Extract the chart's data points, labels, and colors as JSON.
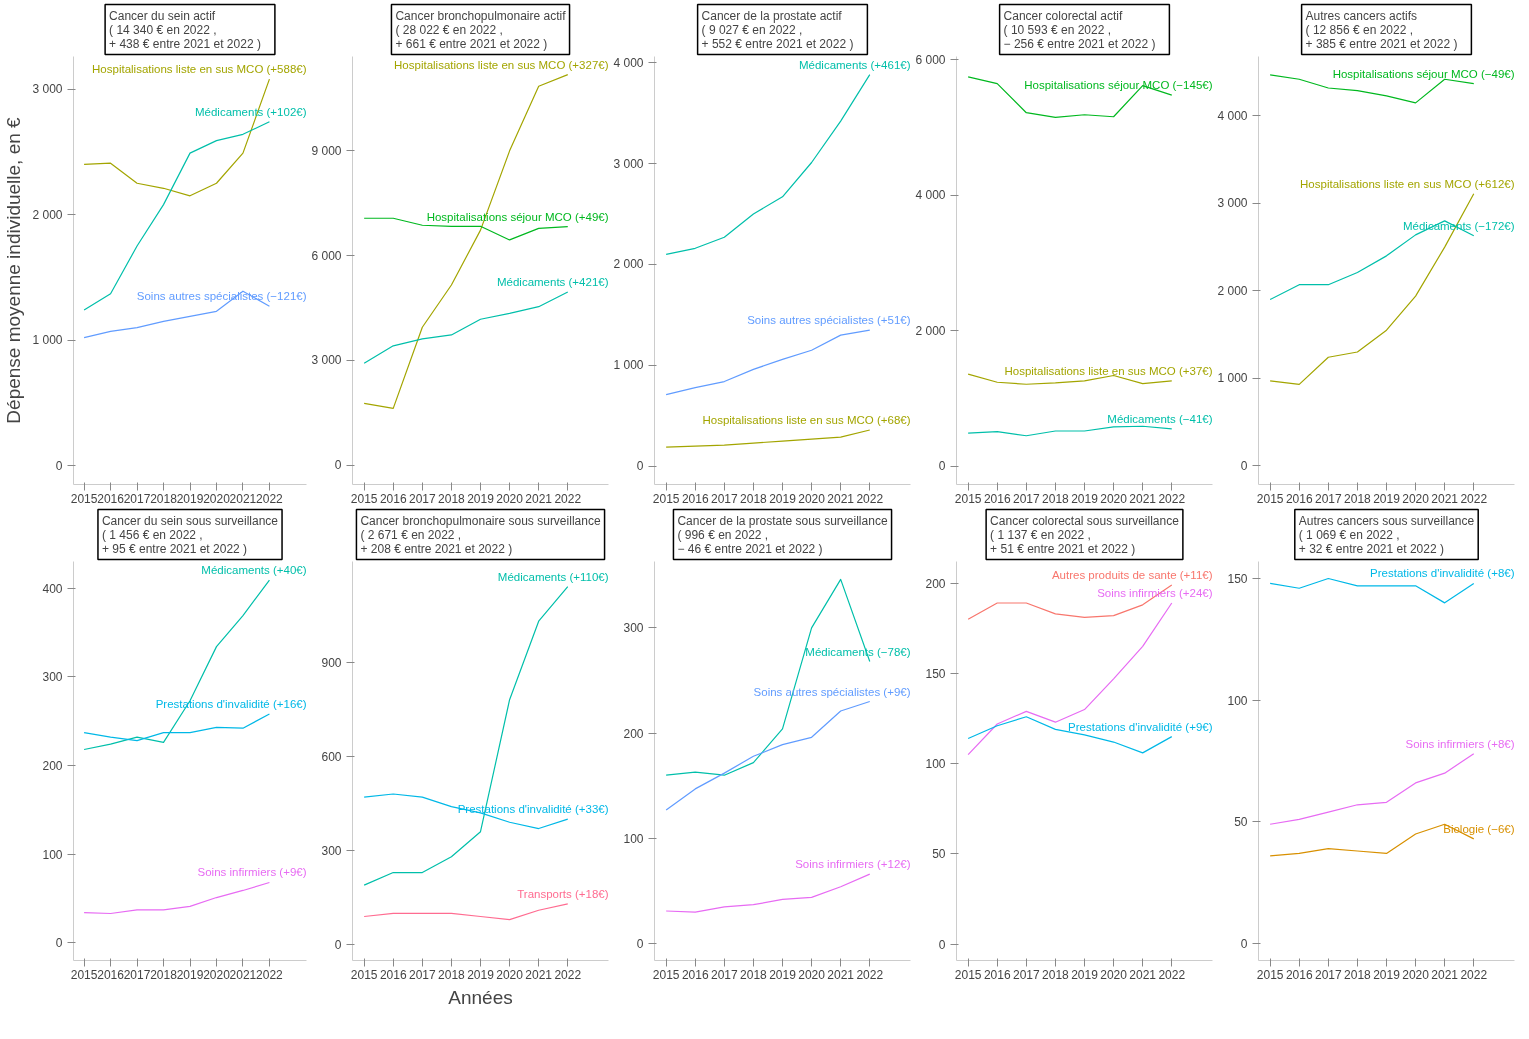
{
  "chart_data": [
    {
      "type": "line",
      "title": "Cancer du sein actif\n( 14 340 € en  2022 ,\n+ 438 € entre  2021  et  2022 )",
      "ylabel": "Dépense moyenne individuelle, en €",
      "x": [
        2015,
        2016,
        2017,
        2018,
        2019,
        2020,
        2021,
        2022
      ],
      "xlim": [
        2014.6,
        2023.4
      ],
      "xticks": [
        2015,
        2016,
        2017,
        2018,
        2019,
        2020,
        2021,
        2022
      ],
      "ylim": [
        -150,
        3260
      ],
      "yticks": [
        0,
        {
          "value": 1000,
          "label": "1 000"
        },
        {
          "value": 2000,
          "label": "2 000"
        },
        {
          "value": 3000,
          "label": "3 000"
        }
      ],
      "series": [
        {
          "name": "Hospitalisations liste en sus MCO (+588€)",
          "color": "#a3a500",
          "values": [
            2400,
            2410,
            2250,
            2210,
            2150,
            2250,
            2490,
            3080
          ]
        },
        {
          "name": "Médicaments (+102€)",
          "color": "#00bfaa",
          "values": [
            1240,
            1370,
            1750,
            2080,
            2490,
            2590,
            2640,
            2740
          ]
        },
        {
          "name": "Soins autres spécialistes (−121€)",
          "color": "#619cff",
          "values": [
            1020,
            1070,
            1100,
            1150,
            1190,
            1230,
            1390,
            1270
          ]
        }
      ]
    },
    {
      "type": "line",
      "title": "Cancer bronchopulmonaire actif\n( 28 022 € en  2022 ,\n+ 661 € entre  2021  et  2022 )",
      "x": [
        2015,
        2016,
        2017,
        2018,
        2019,
        2020,
        2021,
        2022
      ],
      "xlim": [
        2014.6,
        2023.4
      ],
      "xticks": [
        2015,
        2016,
        2017,
        2018,
        2019,
        2020,
        2021,
        2022
      ],
      "ylim": [
        -550,
        11700
      ],
      "yticks": [
        0,
        {
          "value": 3000,
          "label": "3 000"
        },
        {
          "value": 6000,
          "label": "6 000"
        },
        {
          "value": 9000,
          "label": "9 000"
        }
      ],
      "series": [
        {
          "name": "Hospitalisations liste en sus MCO (+327€)",
          "color": "#a3a500",
          "values": [
            1770,
            1630,
            3950,
            5160,
            6730,
            9000,
            10850,
            11180
          ]
        },
        {
          "name": "Hospitalisations séjour MCO (+49€)",
          "color": "#00b81f",
          "values": [
            7070,
            7070,
            6870,
            6840,
            6840,
            6450,
            6780,
            6830
          ]
        },
        {
          "name": "Médicaments (+421€)",
          "color": "#00bfaa",
          "values": [
            2920,
            3420,
            3620,
            3730,
            4180,
            4350,
            4540,
            4960
          ]
        }
      ]
    },
    {
      "type": "line",
      "title": "Cancer de la prostate actif\n( 9 027 € en  2022 ,\n+ 552 € entre  2021  et  2022 )",
      "x": [
        2015,
        2016,
        2017,
        2018,
        2019,
        2020,
        2021,
        2022
      ],
      "xlim": [
        2014.6,
        2023.4
      ],
      "xticks": [
        2015,
        2016,
        2017,
        2018,
        2019,
        2020,
        2021,
        2022
      ],
      "ylim": [
        -180,
        4060
      ],
      "yticks": [
        0,
        {
          "value": 1000,
          "label": "1 000"
        },
        {
          "value": 2000,
          "label": "2 000"
        },
        {
          "value": 3000,
          "label": "3 000"
        },
        {
          "value": 4000,
          "label": "4 000"
        }
      ],
      "series": [
        {
          "name": "Médicaments (+461€)",
          "color": "#00bfaa",
          "values": [
            2100,
            2160,
            2270,
            2500,
            2670,
            3010,
            3420,
            3880
          ]
        },
        {
          "name": "Soins autres spécialistes (+51€)",
          "color": "#619cff",
          "values": [
            710,
            780,
            840,
            960,
            1060,
            1150,
            1300,
            1350
          ]
        },
        {
          "name": "Hospitalisations liste en sus MCO (+68€)",
          "color": "#a3a500",
          "values": [
            190,
            200,
            210,
            230,
            250,
            270,
            290,
            360
          ]
        }
      ]
    },
    {
      "type": "line",
      "title": "Cancer colorectal actif\n( 10 593 € en  2022 ,\n− 256 € entre  2021  et  2022 )",
      "x": [
        2015,
        2016,
        2017,
        2018,
        2019,
        2020,
        2021,
        2022
      ],
      "xlim": [
        2014.6,
        2023.4
      ],
      "xticks": [
        2015,
        2016,
        2017,
        2018,
        2019,
        2020,
        2021,
        2022
      ],
      "ylim": [
        -270,
        6050
      ],
      "yticks": [
        0,
        {
          "value": 2000,
          "label": "2 000"
        },
        {
          "value": 4000,
          "label": "4 000"
        },
        {
          "value": 6000,
          "label": "6 000"
        }
      ],
      "series": [
        {
          "name": "Hospitalisations séjour MCO (−145€)",
          "color": "#00b81f",
          "values": [
            5750,
            5650,
            5220,
            5150,
            5190,
            5160,
            5620,
            5480
          ]
        },
        {
          "name": "Hospitalisations liste en sus MCO (+37€)",
          "color": "#a3a500",
          "values": [
            1360,
            1240,
            1210,
            1230,
            1260,
            1340,
            1220,
            1260
          ]
        },
        {
          "name": "Médicaments (−41€)",
          "color": "#00bfaa",
          "values": [
            490,
            510,
            450,
            520,
            520,
            580,
            590,
            550
          ]
        }
      ]
    },
    {
      "type": "line",
      "title": "Autres cancers actifs\n( 12 856 € en  2022 ,\n+ 385 € entre  2021  et  2022 )",
      "x": [
        2015,
        2016,
        2017,
        2018,
        2019,
        2020,
        2021,
        2022
      ],
      "xlim": [
        2014.6,
        2023.4
      ],
      "xticks": [
        2015,
        2016,
        2017,
        2018,
        2019,
        2020,
        2021,
        2022
      ],
      "ylim": [
        -215,
        4680
      ],
      "yticks": [
        0,
        {
          "value": 1000,
          "label": "1 000"
        },
        {
          "value": 2000,
          "label": "2 000"
        },
        {
          "value": 3000,
          "label": "3 000"
        },
        {
          "value": 4000,
          "label": "4 000"
        }
      ],
      "series": [
        {
          "name": "Hospitalisations séjour MCO (−49€)",
          "color": "#00b81f",
          "values": [
            4470,
            4420,
            4320,
            4290,
            4230,
            4150,
            4420,
            4370
          ]
        },
        {
          "name": "Hospitalisations liste en sus MCO (+612€)",
          "color": "#a3a500",
          "values": [
            970,
            930,
            1240,
            1300,
            1550,
            1940,
            2500,
            3110
          ]
        },
        {
          "name": "Médicaments (−172€)",
          "color": "#00bfaa",
          "values": [
            1900,
            2070,
            2070,
            2210,
            2400,
            2640,
            2800,
            2630
          ]
        }
      ]
    },
    {
      "type": "line",
      "title": "Cancer du sein sous surveillance\n( 1 456 € en  2022 ,\n+ 95 € entre  2021  et  2022 )",
      "x": [
        2015,
        2016,
        2017,
        2018,
        2019,
        2020,
        2021,
        2022
      ],
      "xlim": [
        2014.6,
        2023.4
      ],
      "xticks": [
        2015,
        2016,
        2017,
        2018,
        2019,
        2020,
        2021,
        2022
      ],
      "ylim": [
        -20,
        430
      ],
      "yticks": [
        0,
        100,
        200,
        300,
        400
      ],
      "series": [
        {
          "name": "Médicaments (+40€)",
          "color": "#00bfaa",
          "values": [
            218,
            224,
            232,
            226,
            273,
            334,
            369,
            409
          ]
        },
        {
          "name": "Prestations d'invalidité (+16€)",
          "color": "#00b8e7",
          "values": [
            237,
            232,
            228,
            237,
            237,
            243,
            242,
            258
          ]
        },
        {
          "name": "Soins infirmiers (+9€)",
          "color": "#e76bf3",
          "values": [
            34,
            33,
            37,
            37,
            41,
            51,
            59,
            68
          ]
        }
      ]
    },
    {
      "type": "line",
      "title": "Cancer bronchopulmonaire sous surveillance\n( 2 671 € en  2022 ,\n+ 208 € entre  2021  et  2022 )",
      "xlabel": "Années",
      "x": [
        2015,
        2016,
        2017,
        2018,
        2019,
        2020,
        2021,
        2022
      ],
      "xlim": [
        2014.6,
        2023.4
      ],
      "xticks": [
        2015,
        2016,
        2017,
        2018,
        2019,
        2020,
        2021,
        2022
      ],
      "ylim": [
        -50,
        1220
      ],
      "yticks": [
        0,
        300,
        600,
        900
      ],
      "series": [
        {
          "name": "Médicaments (+110€)",
          "color": "#00bfaa",
          "values": [
            190,
            230,
            230,
            280,
            360,
            780,
            1030,
            1140
          ]
        },
        {
          "name": "Prestations d'invalidité (+33€)",
          "color": "#00b8e7",
          "values": [
            470,
            480,
            470,
            440,
            420,
            390,
            370,
            400
          ]
        },
        {
          "name": "Transports (+18€)",
          "color": "#ff6c91",
          "values": [
            90,
            100,
            100,
            100,
            90,
            80,
            110,
            130
          ]
        }
      ]
    },
    {
      "type": "line",
      "title": "Cancer de la prostate sous surveillance\n( 996 € en  2022 ,\n− 46 € entre  2021  et  2022 )",
      "x": [
        2015,
        2016,
        2017,
        2018,
        2019,
        2020,
        2021,
        2022
      ],
      "xlim": [
        2014.6,
        2023.4
      ],
      "xticks": [
        2015,
        2016,
        2017,
        2018,
        2019,
        2020,
        2021,
        2022
      ],
      "ylim": [
        -16,
        363
      ],
      "yticks": [
        0,
        100,
        200,
        300
      ],
      "series": [
        {
          "name": "Médicaments (−78€)",
          "color": "#00bfaa",
          "values": [
            160,
            163,
            160,
            172,
            204,
            300,
            346,
            268
          ]
        },
        {
          "name": "Soins autres spécialistes (+9€)",
          "color": "#619cff",
          "values": [
            127,
            147,
            162,
            178,
            189,
            196,
            221,
            230
          ]
        },
        {
          "name": "Soins infirmiers (+12€)",
          "color": "#e76bf3",
          "values": [
            31,
            30,
            35,
            37,
            42,
            44,
            54,
            66
          ]
        }
      ]
    },
    {
      "type": "line",
      "title": "Cancer colorectal sous surveillance\n( 1 137 € en  2022 ,\n+ 51 € entre  2021  et  2022 )",
      "x": [
        2015,
        2016,
        2017,
        2018,
        2019,
        2020,
        2021,
        2022
      ],
      "xlim": [
        2014.6,
        2023.4
      ],
      "xticks": [
        2015,
        2016,
        2017,
        2018,
        2019,
        2020,
        2021,
        2022
      ],
      "ylim": [
        -9,
        212
      ],
      "yticks": [
        0,
        50,
        100,
        150,
        200
      ],
      "series": [
        {
          "name": "Autres produits de sante (+11€)",
          "color": "#f8766d",
          "values": [
            180,
            189,
            189,
            183,
            181,
            182,
            188,
            199
          ]
        },
        {
          "name": "Soins infirmiers (+24€)",
          "color": "#e76bf3",
          "values": [
            105,
            122,
            129,
            123,
            130,
            147,
            165,
            189
          ]
        },
        {
          "name": "Prestations d'invalidité (+9€)",
          "color": "#00b8e7",
          "values": [
            114,
            121,
            126,
            119,
            116,
            112,
            106,
            115
          ]
        }
      ]
    },
    {
      "type": "line",
      "title": "Autres cancers sous surveillance\n( 1 069 € en  2022 ,\n+ 32 € entre  2021  et  2022 )",
      "x": [
        2015,
        2016,
        2017,
        2018,
        2019,
        2020,
        2021,
        2022
      ],
      "xlim": [
        2014.6,
        2023.4
      ],
      "xticks": [
        2015,
        2016,
        2017,
        2018,
        2019,
        2020,
        2021,
        2022
      ],
      "ylim": [
        -7,
        157
      ],
      "yticks": [
        0,
        50,
        100,
        150
      ],
      "series": [
        {
          "name": "Prestations d'invalidité (+8€)",
          "color": "#00b8e7",
          "values": [
            148,
            146,
            150,
            147,
            147,
            147,
            140,
            148
          ]
        },
        {
          "name": "Soins infirmiers (+8€)",
          "color": "#e76bf3",
          "values": [
            49,
            51,
            54,
            57,
            58,
            66,
            70,
            78
          ]
        },
        {
          "name": "Biologie (−6€)",
          "color": "#d89000",
          "values": [
            36,
            37,
            39,
            38,
            37,
            45,
            49,
            43
          ]
        }
      ]
    }
  ]
}
